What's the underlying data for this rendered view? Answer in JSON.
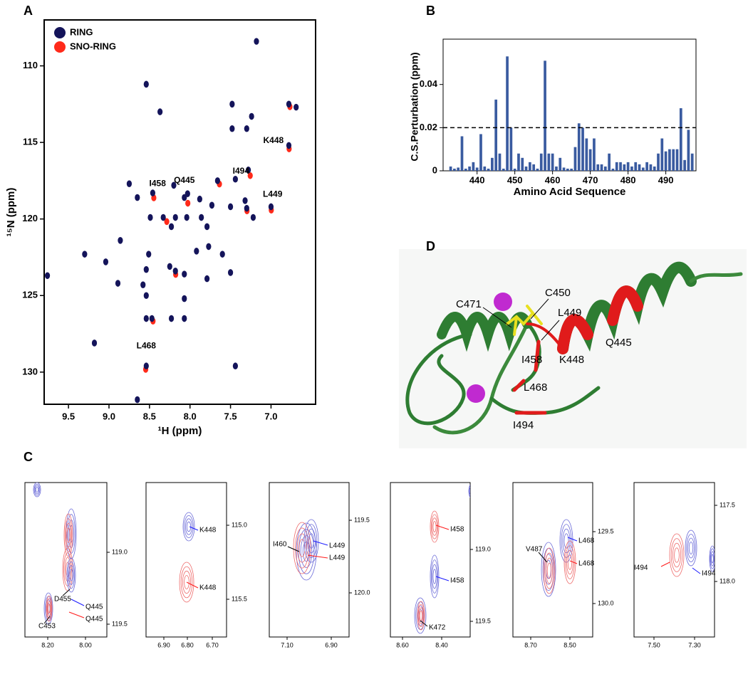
{
  "panel_labels": [
    "A",
    "B",
    "C",
    "D"
  ],
  "chart_data": [
    {
      "type": "scatter",
      "xlabel": "¹H (ppm)",
      "ylabel": "¹⁵N (ppm)",
      "xlim": [
        9.8,
        6.45
      ],
      "ylim": [
        107,
        132.1
      ],
      "yaxis_inverted": true,
      "xticks": [
        9.5,
        {
          "value": 9,
          "label": "9.0"
        },
        8.5,
        {
          "value": 8,
          "label": "8.0"
        },
        7.5,
        {
          "value": 7,
          "label": "7.0"
        }
      ],
      "yticks": [
        110,
        115,
        120,
        125,
        130
      ],
      "legend": "upper left",
      "series": [
        {
          "name": "SNO-RING",
          "color": "#ff2a1a",
          "x": [
            6.79,
            8.46,
            8.04,
            7.27,
            7.01,
            8.56,
            8.19,
            7.65,
            8.3,
            8.47,
            7.31,
            6.78
          ],
          "values": [
            115.35,
            118.55,
            118.9,
            117.1,
            119.35,
            129.75,
            123.55,
            117.65,
            120.1,
            126.6,
            119.4,
            112.6
          ]
        },
        {
          "name": "RING",
          "color": "#14145a",
          "x": [
            7.18,
            8.54,
            7.48,
            8.37,
            7.48,
            7.3,
            7.24,
            6.78,
            6.69,
            6.78,
            7.28,
            7.44,
            7.66,
            8.2,
            8.75,
            8.46,
            8.07,
            8.03,
            8.65,
            7.88,
            7.73,
            7.5,
            7.32,
            7.3,
            7.22,
            7.0,
            8.49,
            8.33,
            8.18,
            8.04,
            7.86,
            8.23,
            7.79,
            8.86,
            7.92,
            7.77,
            7.6,
            8.51,
            9.3,
            9.04,
            8.25,
            8.18,
            8.07,
            7.79,
            7.5,
            8.54,
            9.76,
            8.89,
            8.58,
            8.54,
            8.07,
            8.54,
            8.47,
            8.23,
            8.07,
            9.18,
            8.54,
            7.44,
            8.65
          ],
          "values": [
            108.4,
            111.2,
            112.5,
            113.0,
            114.1,
            114.1,
            113.3,
            112.5,
            112.7,
            115.2,
            116.8,
            117.4,
            117.5,
            117.8,
            117.7,
            118.3,
            118.6,
            118.35,
            118.6,
            118.7,
            119.1,
            119.2,
            118.8,
            119.3,
            119.9,
            119.2,
            119.9,
            119.9,
            119.9,
            119.9,
            119.9,
            120.5,
            120.5,
            121.4,
            122.1,
            121.8,
            122.3,
            122.3,
            122.3,
            122.8,
            123.1,
            123.4,
            123.6,
            123.9,
            123.5,
            123.3,
            123.7,
            124.2,
            124.3,
            125.0,
            125.2,
            126.5,
            126.5,
            126.5,
            126.5,
            128.1,
            129.6,
            129.6,
            131.8
          ]
        }
      ],
      "annotations": [
        {
          "text": "K448",
          "x": 6.97,
          "y": 114.9
        },
        {
          "text": "I458",
          "x": 8.4,
          "y": 117.7
        },
        {
          "text": "Q445",
          "x": 8.07,
          "y": 117.5
        },
        {
          "text": "I494",
          "x": 7.37,
          "y": 116.9
        },
        {
          "text": "L449",
          "x": 6.98,
          "y": 118.4
        },
        {
          "text": "L468",
          "x": 8.54,
          "y": 128.3
        }
      ]
    },
    {
      "type": "bar",
      "xlabel": "Amino Acid Sequence",
      "ylabel": "C.S.Perturbation (ppm)",
      "color": "#3a5ba0",
      "x": [
        433,
        434,
        435,
        436,
        437,
        438,
        439,
        440,
        441,
        442,
        443,
        444,
        445,
        446,
        447,
        448,
        449,
        450,
        451,
        452,
        453,
        454,
        455,
        456,
        457,
        458,
        459,
        460,
        461,
        462,
        463,
        464,
        465,
        466,
        467,
        468,
        469,
        470,
        471,
        472,
        473,
        474,
        475,
        476,
        477,
        478,
        479,
        480,
        481,
        482,
        483,
        484,
        485,
        486,
        487,
        488,
        489,
        490,
        491,
        492,
        493,
        494,
        495,
        496,
        497
      ],
      "values": [
        0.002,
        0.001,
        0.0015,
        0.016,
        0.001,
        0.002,
        0.004,
        0.0015,
        0.017,
        0.002,
        0.001,
        0.006,
        0.033,
        0.008,
        0.001,
        0.053,
        0.02,
        0.001,
        0.008,
        0.006,
        0.002,
        0.004,
        0.003,
        0.001,
        0.008,
        0.051,
        0.008,
        0.008,
        0.002,
        0.006,
        0.0015,
        0.001,
        0.001,
        0.011,
        0.022,
        0.02,
        0.015,
        0.01,
        0.015,
        0.003,
        0.003,
        0.002,
        0.008,
        0.001,
        0.004,
        0.004,
        0.003,
        0.004,
        0.002,
        0.004,
        0.003,
        0.0015,
        0.004,
        0.003,
        0.002,
        0.008,
        0.015,
        0.009,
        0.01,
        0.01,
        0.01,
        0.029,
        0.005,
        0.019,
        0.008
      ],
      "xlim": [
        431,
        498
      ],
      "ylim": [
        0,
        0.061
      ],
      "xticks": [
        440,
        450,
        460,
        470,
        480,
        490
      ],
      "yticks": [
        0,
        0.02,
        0.04
      ],
      "threshold": 0.02
    }
  ],
  "panel_c": [
    {
      "xticks": [
        "8.20",
        "8.00"
      ],
      "yticks": [
        "119.0",
        "119.5"
      ],
      "labels": [
        {
          "text": "D455",
          "color": "#000000"
        },
        {
          "text": "Q445",
          "color": "#1a1aff"
        },
        {
          "text": "Q445",
          "color": "#ff1a1a"
        },
        {
          "text": "C453",
          "color": "#000000"
        }
      ]
    },
    {
      "xticks": [
        "6.90",
        "6.80",
        "6.70"
      ],
      "yticks": [
        "115.0",
        "115.5"
      ],
      "labels": [
        {
          "text": "K448",
          "color": "#1a1aff"
        },
        {
          "text": "K448",
          "color": "#ff1a1a"
        }
      ]
    },
    {
      "xticks": [
        "7.10",
        "6.90"
      ],
      "yticks": [
        "119.5",
        "120.0"
      ],
      "labels": [
        {
          "text": "I460",
          "color": "#000000"
        },
        {
          "text": "L449",
          "color": "#1a1aff"
        },
        {
          "text": "L449",
          "color": "#ff1a1a"
        }
      ]
    },
    {
      "xticks": [
        "8.60",
        "8.40"
      ],
      "yticks": [
        "119.0",
        "119.5"
      ],
      "labels": [
        {
          "text": "I458",
          "color": "#ff1a1a"
        },
        {
          "text": "I458",
          "color": "#1a1aff"
        },
        {
          "text": "K472",
          "color": "#000000"
        }
      ]
    },
    {
      "xticks": [
        "8.70",
        "8.50"
      ],
      "yticks": [
        "129.5",
        "130.0"
      ],
      "labels": [
        {
          "text": "L468",
          "color": "#1a1aff"
        },
        {
          "text": "V487",
          "color": "#000000"
        },
        {
          "text": "L468",
          "color": "#ff1a1a"
        }
      ]
    },
    {
      "xticks": [
        "7.50",
        "7.30"
      ],
      "yticks": [
        "117.5",
        "118.0"
      ],
      "labels": [
        {
          "text": "I494",
          "color": "#ff1a1a"
        },
        {
          "text": "I494",
          "color": "#1a1aff"
        }
      ]
    }
  ],
  "panel_d": {
    "labels": [
      "C471",
      "C450",
      "L449",
      "Q445",
      "K448",
      "I458",
      "L468",
      "I494"
    ]
  }
}
